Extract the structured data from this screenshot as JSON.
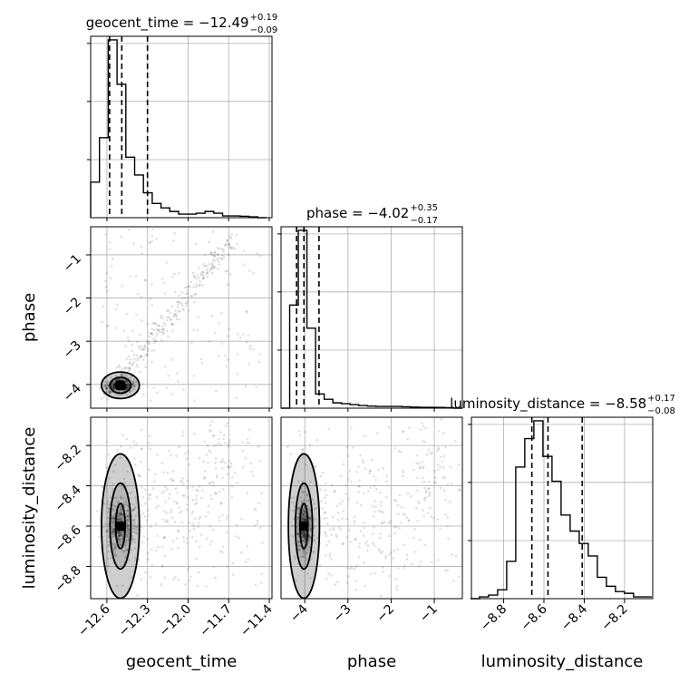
{
  "chart_data": {
    "type": "scatter",
    "title": "",
    "parameters": [
      "geocent_time",
      "phase",
      "luminosity_distance"
    ],
    "titles": [
      {
        "text": "geocent_time = −12.49",
        "plus": "+0.19",
        "minus": "−0.09"
      },
      {
        "text": "phase = −4.02",
        "plus": "+0.35",
        "minus": "−0.17"
      },
      {
        "text": "luminosity_distance = −8.58",
        "plus": "+0.17",
        "minus": "−0.08"
      }
    ],
    "ranges": {
      "geocent_time": [
        -12.72,
        -11.38
      ],
      "phase": [
        -4.55,
        -0.35
      ],
      "luminosity_distance": [
        -8.96,
        -8.06
      ]
    },
    "ticks": {
      "geocent_time": {
        "values": [
          -12.6,
          -12.3,
          -12.0,
          -11.7,
          -11.4
        ],
        "labels": [
          "−12.6",
          "−12.3",
          "−12.0",
          "−11.7",
          "−11.4"
        ]
      },
      "phase": {
        "values": [
          -4,
          -3,
          -2,
          -1
        ],
        "labels": [
          "−4",
          "−3",
          "−2",
          "−1"
        ]
      },
      "luminosity_distance": {
        "values": [
          -8.8,
          -8.6,
          -8.4,
          -8.2
        ],
        "labels": [
          "−8.8",
          "−8.6",
          "−8.4",
          "−8.2"
        ]
      }
    },
    "quantiles": {
      "geocent_time": [
        -12.58,
        -12.49,
        -12.3
      ],
      "phase": [
        -4.19,
        -4.02,
        -3.67
      ],
      "luminosity_distance": [
        -8.66,
        -8.58,
        -8.41
      ]
    },
    "histograms": {
      "geocent_time": {
        "edges": [
          -12.72,
          -12.655,
          -12.59,
          -12.525,
          -12.46,
          -12.395,
          -12.33,
          -12.265,
          -12.2,
          -12.135,
          -12.07,
          -12.005,
          -11.94,
          -11.875,
          -11.81,
          -11.745,
          -11.68,
          -11.615,
          -11.55,
          -11.485,
          -11.42
        ],
        "counts": [
          0.2,
          0.45,
          1.0,
          0.75,
          0.34,
          0.24,
          0.14,
          0.08,
          0.055,
          0.035,
          0.02,
          0.02,
          0.025,
          0.035,
          0.025,
          0.01,
          0.01,
          0.008,
          0.005,
          0.0
        ]
      },
      "phase": {
        "edges": [
          -4.55,
          -4.35,
          -4.15,
          -3.95,
          -3.75,
          -3.55,
          -3.35,
          -3.15,
          -2.95,
          -2.75,
          -2.55,
          -2.35,
          -2.15,
          -1.95,
          -1.75,
          -1.55,
          -1.35,
          -1.15,
          -0.95,
          -0.75,
          -0.55,
          -0.35
        ],
        "counts": [
          0.0,
          0.58,
          1.0,
          0.45,
          0.08,
          0.05,
          0.03,
          0.025,
          0.02,
          0.015,
          0.012,
          0.01,
          0.01,
          0.01,
          0.008,
          0.006,
          0.005,
          0.005,
          0.004,
          0.003,
          0.0
        ]
      },
      "luminosity_distance": {
        "edges": [
          -8.965,
          -8.92,
          -8.875,
          -8.83,
          -8.785,
          -8.74,
          -8.695,
          -8.65,
          -8.605,
          -8.56,
          -8.515,
          -8.47,
          -8.425,
          -8.38,
          -8.335,
          -8.29,
          -8.245,
          -8.2,
          -8.155,
          -8.11,
          -8.065
        ],
        "counts": [
          0.0,
          0.01,
          0.02,
          0.05,
          0.21,
          0.74,
          0.9,
          1.0,
          0.8,
          0.66,
          0.47,
          0.38,
          0.31,
          0.24,
          0.12,
          0.07,
          0.04,
          0.03,
          0.01,
          0.01
        ]
      }
    },
    "grid": true
  },
  "labels": {
    "geocent_time": "geocent_time",
    "phase": "phase",
    "luminosity_distance": "luminosity_distance"
  }
}
